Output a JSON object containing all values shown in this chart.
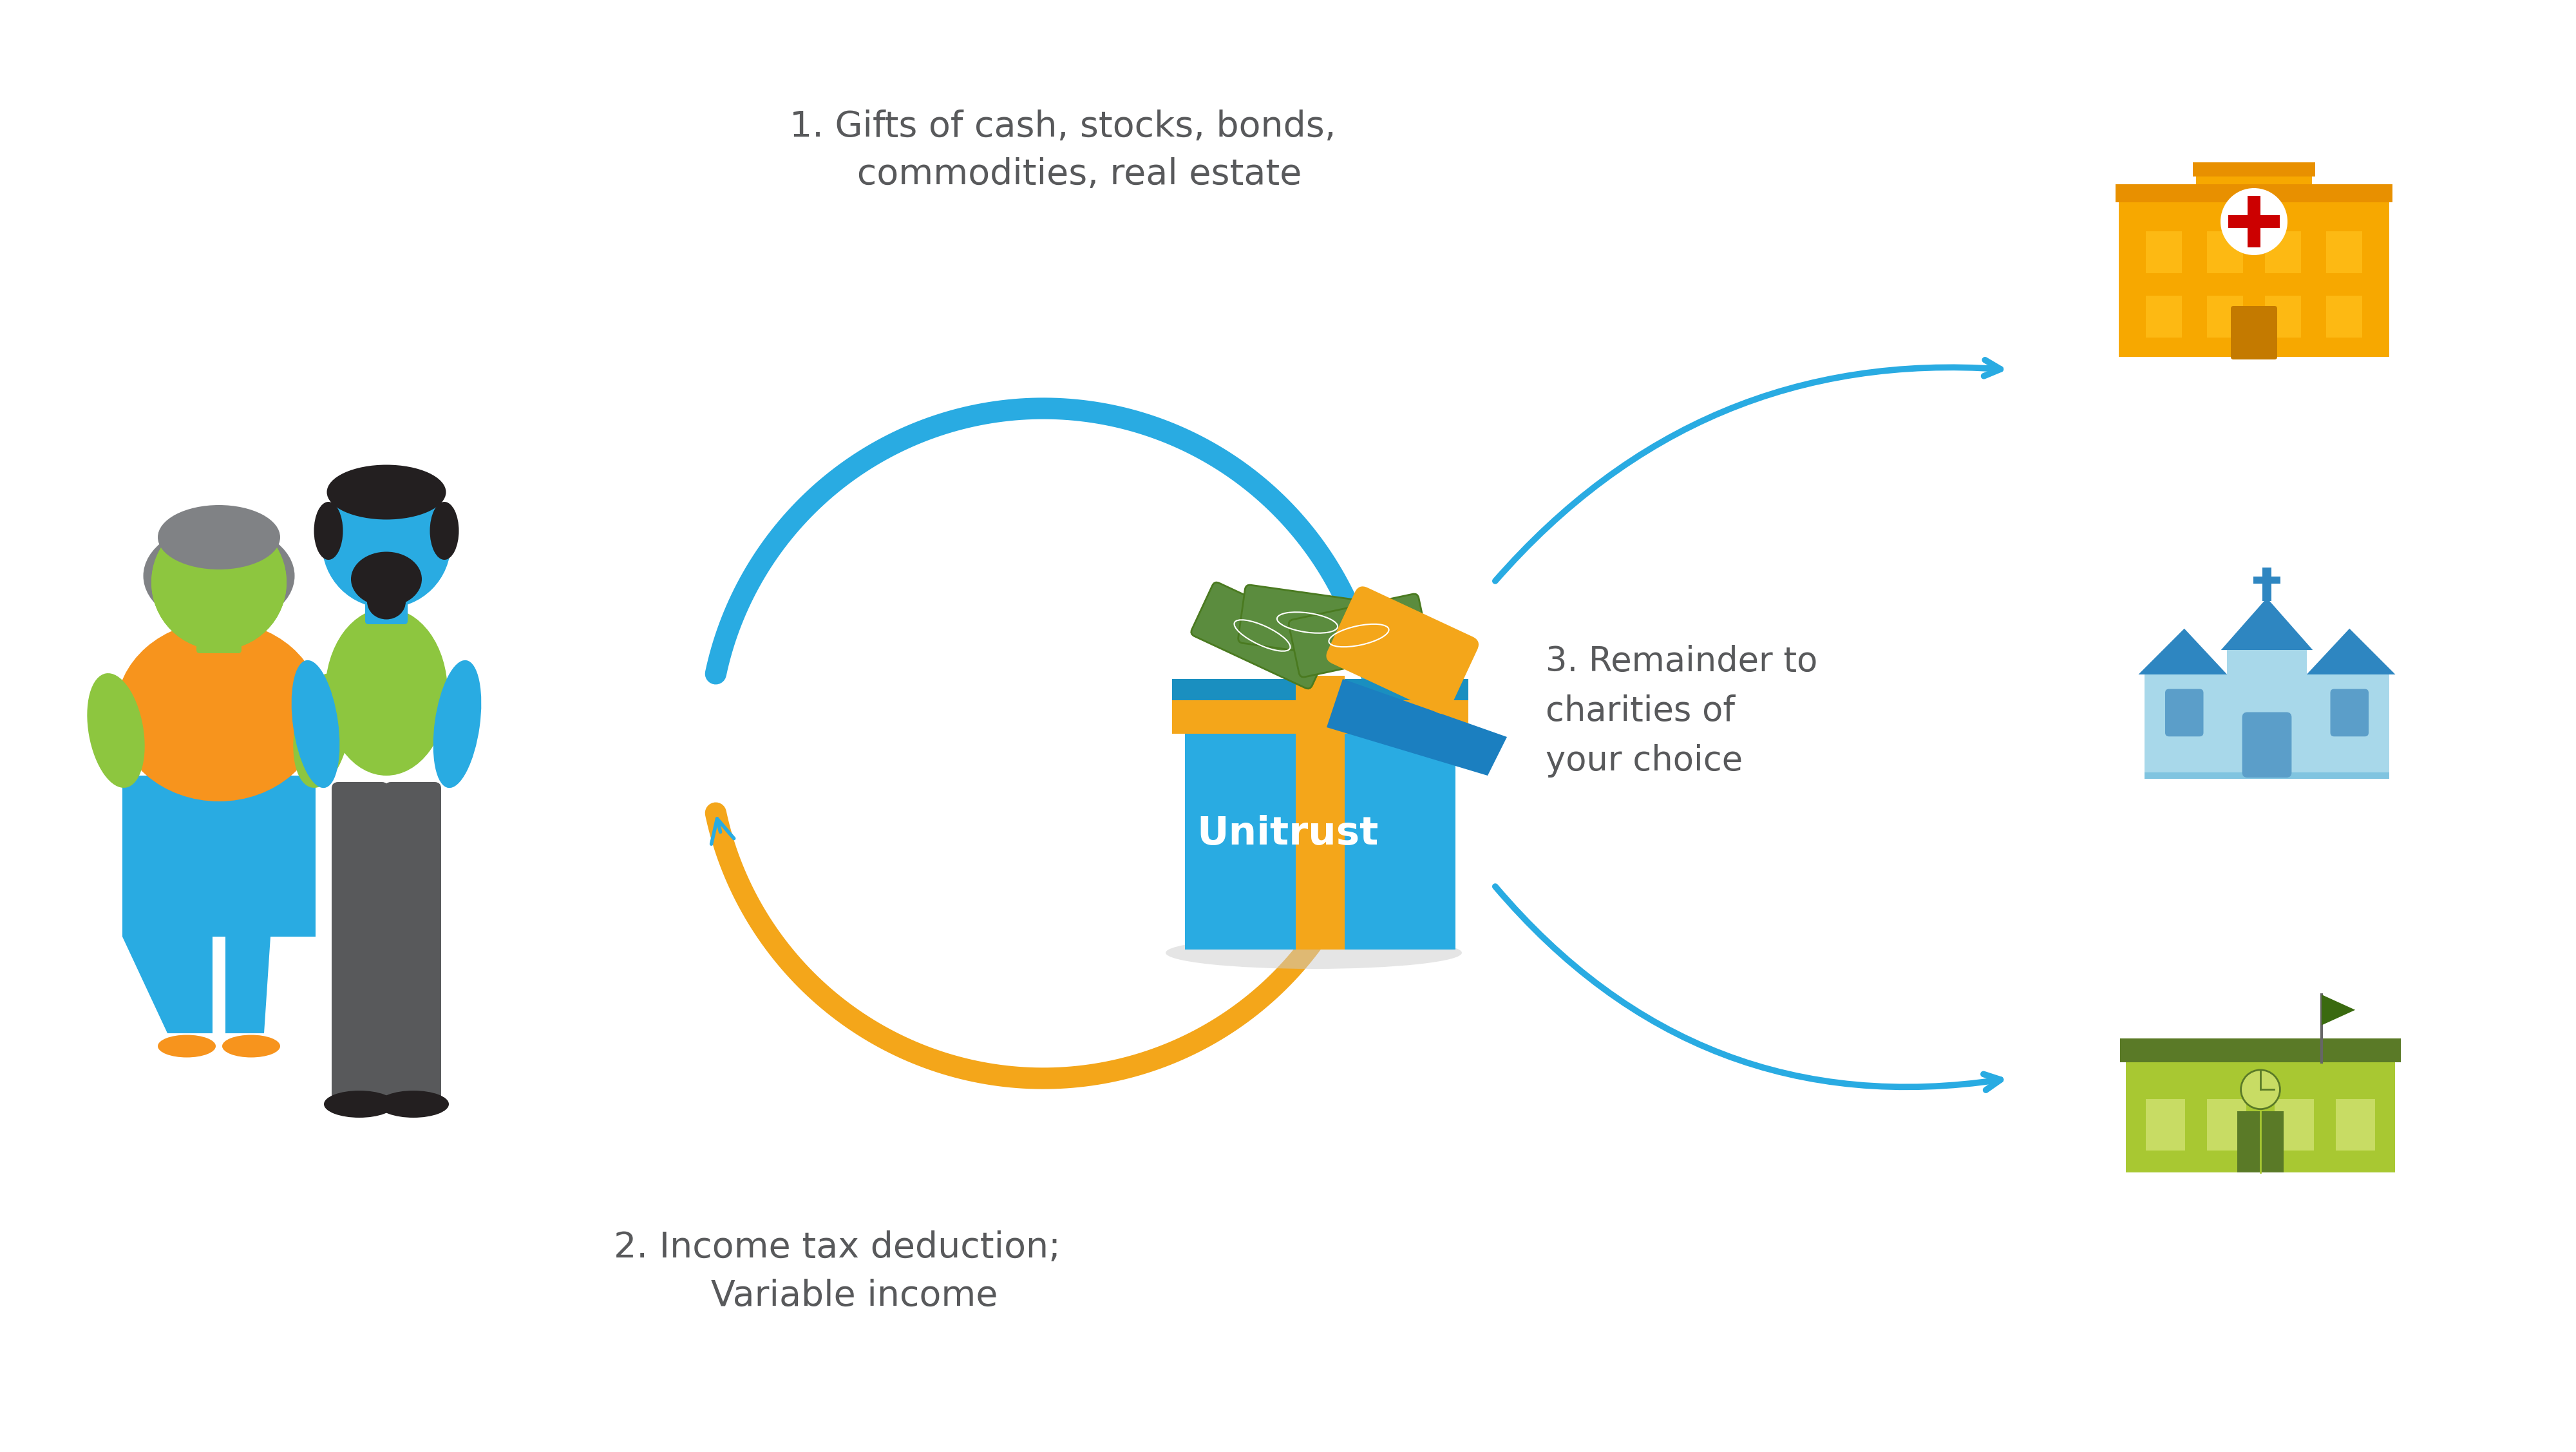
{
  "background_color": "#ffffff",
  "text1": "1. Gifts of cash, stocks, bonds,\n   commodities, real estate",
  "text2": "2. Income tax deduction;\n   Variable income",
  "text3": "3. Remainder to\ncharities of\nyour choice",
  "unitrust_label": "Unitrust",
  "arrow_color_cyan": "#29ABE2",
  "arrow_color_orange": "#F4A61A",
  "text_color": "#58595B",
  "woman_skin": "#8DC63F",
  "woman_top": "#F7941D",
  "woman_pants": "#29ABE2",
  "woman_shoes": "#F7941D",
  "woman_hair": "#808285",
  "man_skin": "#29ABE2",
  "man_shirt": "#8DC63F",
  "man_pants": "#58595B",
  "man_shoes": "#231F20",
  "man_hair": "#231F20",
  "man_beard": "#231F20",
  "box_blue": "#29ABE2",
  "box_blue_dark": "#1A8FC0",
  "bow_color": "#F4A61A",
  "money_green": "#5B8C3E",
  "hospital_main": "#F7941D",
  "hospital_roof": "#E8821A",
  "hospital_windows": "#FDB913",
  "hospital_cross_bg": "#ffffff",
  "hospital_cross": "#CC0000",
  "church_body": "#A8D4E8",
  "church_roof": "#2980B9",
  "church_door": "#5B8DB8",
  "school_body": "#8DC63F",
  "school_roof": "#5A7A27",
  "school_door": "#4A6A1A",
  "figsize": [
    40,
    22.54
  ]
}
